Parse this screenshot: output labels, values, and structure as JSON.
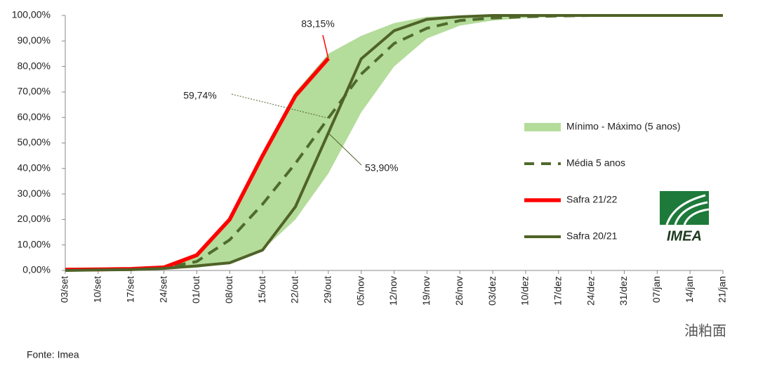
{
  "chart_data": {
    "type": "line",
    "categories": [
      "03/set",
      "10/set",
      "17/set",
      "24/set",
      "01/out",
      "08/out",
      "15/out",
      "22/out",
      "29/out",
      "05/nov",
      "12/nov",
      "19/nov",
      "26/nov",
      "03/dez",
      "10/dez",
      "17/dez",
      "24/dez",
      "31/dez",
      "07/jan",
      "14/jan",
      "21/jan"
    ],
    "series": [
      {
        "name": "Mínimo - Máximo (5 anos)",
        "color": "#b4dc9a",
        "lower": [
          0,
          0,
          0.2,
          0.5,
          1,
          3,
          8,
          20,
          38,
          62,
          80,
          91,
          96,
          98,
          99,
          99.5,
          100,
          100,
          100,
          100,
          100
        ],
        "upper": [
          0.5,
          0.6,
          0.8,
          1.5,
          6,
          20,
          45,
          70,
          85,
          92,
          97,
          99.5,
          100,
          100,
          100,
          100,
          100,
          100,
          100,
          100,
          100
        ]
      },
      {
        "name": "Média 5 anos",
        "color": "#4f6b2c",
        "dashed": true,
        "values": [
          0.2,
          0.3,
          0.5,
          1,
          3.5,
          12,
          26,
          42,
          59.74,
          77,
          89,
          95,
          98,
          99,
          99.5,
          99.8,
          100,
          100,
          100,
          100,
          100
        ],
        "value_labels": [
          null,
          null,
          null,
          null,
          null,
          null,
          null,
          null,
          "59,74%",
          null,
          null,
          null,
          null,
          null,
          null,
          null,
          null,
          null,
          null,
          null,
          null
        ]
      },
      {
        "name": "Safra 21/22",
        "color": "#ff0000",
        "values": [
          0.3,
          0.4,
          0.6,
          1.2,
          6,
          20,
          45,
          68.5,
          83.15,
          null,
          null,
          null,
          null,
          null,
          null,
          null,
          null,
          null,
          null,
          null,
          null
        ],
        "value_labels": [
          null,
          null,
          null,
          null,
          null,
          null,
          null,
          null,
          "83,15%",
          null,
          null,
          null,
          null,
          null,
          null,
          null,
          null,
          null,
          null,
          null,
          null
        ]
      },
      {
        "name": "Safra 20/21",
        "color": "#4f6228",
        "values": [
          0,
          0.2,
          0.3,
          0.8,
          1.8,
          3,
          8,
          25,
          53.9,
          83,
          94,
          98.5,
          99.5,
          100,
          100,
          100,
          100,
          100,
          100,
          100,
          100
        ],
        "value_labels": [
          null,
          null,
          null,
          null,
          null,
          null,
          null,
          null,
          "53,90%",
          null,
          null,
          null,
          null,
          null,
          null,
          null,
          null,
          null,
          null,
          null,
          null
        ]
      }
    ],
    "ylim": [
      0,
      100
    ],
    "yticks": [
      {
        "value": 0,
        "label": "0,00%"
      },
      {
        "value": 10,
        "label": "10,00%"
      },
      {
        "value": 20,
        "label": "20,00%"
      },
      {
        "value": 30,
        "label": "30,00%"
      },
      {
        "value": 40,
        "label": "40,00%"
      },
      {
        "value": 50,
        "label": "50,00%"
      },
      {
        "value": 60,
        "label": "60,00%"
      },
      {
        "value": 70,
        "label": "70,00%"
      },
      {
        "value": 80,
        "label": "80,00%"
      },
      {
        "value": 90,
        "label": "90,00%"
      },
      {
        "value": 100,
        "label": "100,00%"
      }
    ],
    "legend": "right",
    "source": "Fonte: Imea",
    "logo": "IMEA",
    "watermark": "油粕面"
  }
}
